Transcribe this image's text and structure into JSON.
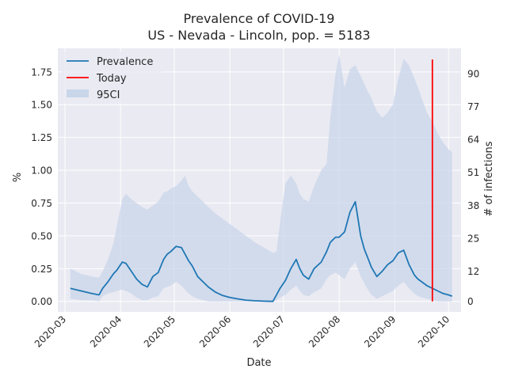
{
  "chart_data": {
    "type": "line",
    "title_line1": "Prevalence of COVID-19",
    "title_line2": "US - Nevada - Lincoln, pop. = 5183",
    "xlabel": "Date",
    "ylabel": "%",
    "y2label": "# of infections",
    "ylim": [
      -0.08,
      1.93
    ],
    "yticks": [
      "0.00",
      "0.25",
      "0.50",
      "0.75",
      "1.00",
      "1.25",
      "1.50",
      "1.75"
    ],
    "y2ticks": [
      "0",
      "12",
      "25",
      "38",
      "51",
      "64",
      "77",
      "90"
    ],
    "xlim": [
      "2020-02-26",
      "2020-10-08"
    ],
    "xticks": [
      "2020-03",
      "2020-04",
      "2020-05",
      "2020-06",
      "2020-07",
      "2020-08",
      "2020-09",
      "2020-10"
    ],
    "grid": true,
    "legend_position": "top-left",
    "legend": [
      "Prevalence",
      "Today",
      "95CI"
    ],
    "colors": {
      "prevalence": "#1f77b4",
      "today": "#ff0000",
      "ci": "#c9d6ea",
      "background": "#eaeaf2",
      "grid": "#ffffff"
    },
    "today": "2020-09-22",
    "series": [
      {
        "name": "Prevalence",
        "x": [
          "2020-03-04",
          "2020-03-10",
          "2020-03-16",
          "2020-03-20",
          "2020-03-22",
          "2020-03-25",
          "2020-03-28",
          "2020-03-30",
          "2020-04-02",
          "2020-04-04",
          "2020-04-07",
          "2020-04-10",
          "2020-04-13",
          "2020-04-16",
          "2020-04-19",
          "2020-04-22",
          "2020-04-25",
          "2020-04-27",
          "2020-04-29",
          "2020-05-02",
          "2020-05-05",
          "2020-05-07",
          "2020-05-09",
          "2020-05-11",
          "2020-05-14",
          "2020-05-17",
          "2020-05-20",
          "2020-05-24",
          "2020-05-28",
          "2020-06-01",
          "2020-06-05",
          "2020-06-10",
          "2020-06-15",
          "2020-06-20",
          "2020-06-25",
          "2020-06-27",
          "2020-06-29",
          "2020-07-02",
          "2020-07-05",
          "2020-07-08",
          "2020-07-10",
          "2020-07-12",
          "2020-07-15",
          "2020-07-18",
          "2020-07-22",
          "2020-07-25",
          "2020-07-27",
          "2020-07-30",
          "2020-08-01",
          "2020-08-04",
          "2020-08-07",
          "2020-08-10",
          "2020-08-13",
          "2020-08-15",
          "2020-08-17",
          "2020-08-19",
          "2020-08-22",
          "2020-08-25",
          "2020-08-28",
          "2020-08-31",
          "2020-09-03",
          "2020-09-06",
          "2020-09-09",
          "2020-09-12",
          "2020-09-14",
          "2020-09-16",
          "2020-09-19",
          "2020-09-22",
          "2020-09-25",
          "2020-09-28",
          "2020-10-01",
          "2020-10-03"
        ],
        "values": [
          0.1,
          0.08,
          0.06,
          0.05,
          0.1,
          0.15,
          0.21,
          0.24,
          0.3,
          0.29,
          0.23,
          0.17,
          0.13,
          0.11,
          0.19,
          0.22,
          0.32,
          0.36,
          0.38,
          0.42,
          0.41,
          0.36,
          0.31,
          0.27,
          0.19,
          0.15,
          0.11,
          0.07,
          0.045,
          0.03,
          0.02,
          0.01,
          0.005,
          0.002,
          0.0,
          0.05,
          0.1,
          0.16,
          0.25,
          0.32,
          0.25,
          0.2,
          0.17,
          0.25,
          0.3,
          0.38,
          0.45,
          0.49,
          0.49,
          0.53,
          0.68,
          0.76,
          0.5,
          0.4,
          0.33,
          0.26,
          0.19,
          0.23,
          0.28,
          0.31,
          0.37,
          0.39,
          0.28,
          0.2,
          0.17,
          0.15,
          0.12,
          0.1,
          0.08,
          0.06,
          0.05,
          0.04
        ]
      },
      {
        "name": "95CI",
        "x": [
          "2020-03-04",
          "2020-03-10",
          "2020-03-16",
          "2020-03-20",
          "2020-03-22",
          "2020-03-25",
          "2020-03-28",
          "2020-03-30",
          "2020-04-02",
          "2020-04-04",
          "2020-04-07",
          "2020-04-10",
          "2020-04-13",
          "2020-04-16",
          "2020-04-19",
          "2020-04-22",
          "2020-04-25",
          "2020-04-27",
          "2020-04-29",
          "2020-05-02",
          "2020-05-05",
          "2020-05-07",
          "2020-05-09",
          "2020-05-11",
          "2020-05-14",
          "2020-05-17",
          "2020-05-20",
          "2020-05-24",
          "2020-05-28",
          "2020-06-01",
          "2020-06-05",
          "2020-06-10",
          "2020-06-15",
          "2020-06-20",
          "2020-06-25",
          "2020-06-27",
          "2020-06-29",
          "2020-07-02",
          "2020-07-05",
          "2020-07-08",
          "2020-07-10",
          "2020-07-12",
          "2020-07-15",
          "2020-07-18",
          "2020-07-22",
          "2020-07-25",
          "2020-07-27",
          "2020-07-30",
          "2020-08-01",
          "2020-08-04",
          "2020-08-07",
          "2020-08-10",
          "2020-08-13",
          "2020-08-15",
          "2020-08-17",
          "2020-08-19",
          "2020-08-22",
          "2020-08-25",
          "2020-08-28",
          "2020-08-31",
          "2020-09-03",
          "2020-09-06",
          "2020-09-09",
          "2020-09-12",
          "2020-09-14",
          "2020-09-16",
          "2020-09-19",
          "2020-09-22",
          "2020-09-25",
          "2020-09-28",
          "2020-10-01",
          "2020-10-03"
        ],
        "upper": [
          0.25,
          0.21,
          0.19,
          0.18,
          0.23,
          0.32,
          0.44,
          0.58,
          0.78,
          0.82,
          0.78,
          0.75,
          0.72,
          0.7,
          0.73,
          0.76,
          0.83,
          0.84,
          0.86,
          0.88,
          0.92,
          0.96,
          0.88,
          0.84,
          0.8,
          0.76,
          0.72,
          0.67,
          0.63,
          0.59,
          0.55,
          0.5,
          0.45,
          0.41,
          0.37,
          0.38,
          0.6,
          0.9,
          0.96,
          0.9,
          0.82,
          0.78,
          0.76,
          0.88,
          1.0,
          1.05,
          1.4,
          1.74,
          1.88,
          1.63,
          1.77,
          1.8,
          1.72,
          1.66,
          1.6,
          1.55,
          1.45,
          1.4,
          1.44,
          1.5,
          1.7,
          1.85,
          1.8,
          1.7,
          1.63,
          1.55,
          1.44,
          1.37,
          1.28,
          1.21,
          1.16,
          1.14
        ],
        "lower": [
          0.02,
          0.01,
          0.01,
          0.0,
          0.04,
          0.06,
          0.07,
          0.08,
          0.09,
          0.08,
          0.06,
          0.03,
          0.01,
          0.01,
          0.03,
          0.04,
          0.1,
          0.11,
          0.12,
          0.15,
          0.12,
          0.09,
          0.06,
          0.04,
          0.02,
          0.01,
          0.0,
          0.0,
          0.0,
          0.0,
          0.0,
          0.0,
          0.0,
          0.0,
          0.0,
          0.01,
          0.03,
          0.05,
          0.09,
          0.12,
          0.08,
          0.05,
          0.04,
          0.07,
          0.1,
          0.17,
          0.2,
          0.22,
          0.2,
          0.17,
          0.25,
          0.3,
          0.19,
          0.14,
          0.09,
          0.05,
          0.02,
          0.04,
          0.06,
          0.08,
          0.12,
          0.15,
          0.1,
          0.06,
          0.04,
          0.03,
          0.02,
          0.01,
          0.0,
          0.0,
          0.0,
          0.0
        ]
      }
    ]
  }
}
